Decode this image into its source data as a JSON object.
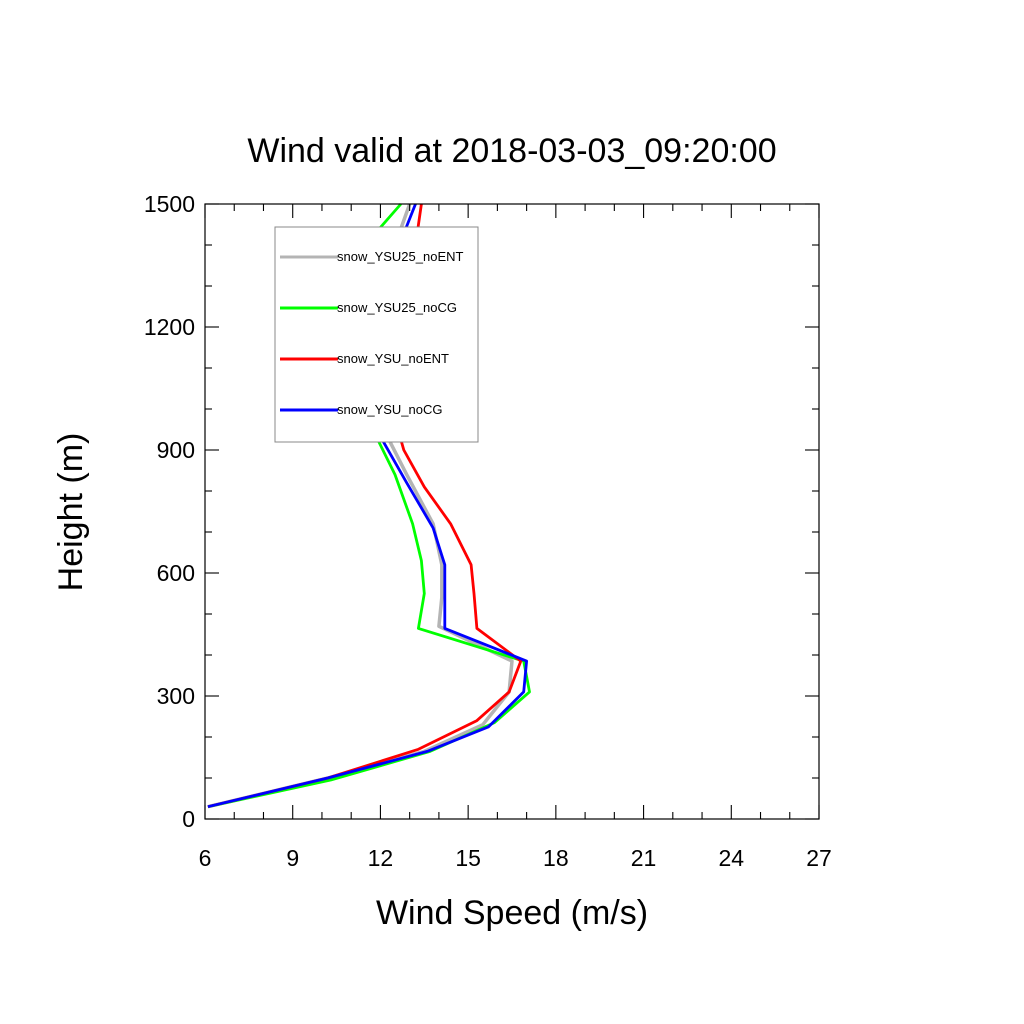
{
  "chart_data": {
    "type": "line",
    "title": "Wind valid at 2018-03-03_09:20:00",
    "xlabel": "Wind Speed (m/s)",
    "ylabel": "Height (m)",
    "xlim": [
      6,
      27
    ],
    "ylim": [
      0,
      1500
    ],
    "xticks": [
      6,
      9,
      12,
      15,
      18,
      21,
      24,
      27
    ],
    "yticks": [
      0,
      300,
      600,
      900,
      1200,
      1500
    ],
    "xtick_labels": [
      "6",
      "9",
      "12",
      "15",
      "18",
      "21",
      "24",
      "27"
    ],
    "ytick_labels": [
      "0",
      "300",
      "600",
      "900",
      "1200",
      "1500"
    ],
    "grid": false,
    "legend_position": "top-left",
    "series": [
      {
        "name": "snow_YSU25_noENT",
        "color": "#b4b4b4",
        "points": [
          [
            6.1,
            30
          ],
          [
            10.2,
            100
          ],
          [
            13.5,
            165
          ],
          [
            15.5,
            230
          ],
          [
            16.4,
            310
          ],
          [
            16.5,
            385
          ],
          [
            14.0,
            470
          ],
          [
            14.1,
            540
          ],
          [
            14.1,
            620
          ],
          [
            13.8,
            720
          ],
          [
            12.9,
            840
          ],
          [
            11.9,
            980
          ],
          [
            11.3,
            1130
          ],
          [
            11.4,
            1200
          ],
          [
            11.7,
            1300
          ],
          [
            12.5,
            1400
          ],
          [
            13.0,
            1500
          ]
        ]
      },
      {
        "name": "snow_YSU25_noCG",
        "color": "#00ff00",
        "points": [
          [
            6.1,
            30
          ],
          [
            10.3,
            95
          ],
          [
            13.7,
            165
          ],
          [
            15.9,
            235
          ],
          [
            17.1,
            310
          ],
          [
            16.9,
            385
          ],
          [
            13.3,
            465
          ],
          [
            13.5,
            550
          ],
          [
            13.4,
            630
          ],
          [
            13.1,
            720
          ],
          [
            12.5,
            840
          ],
          [
            11.6,
            970
          ],
          [
            10.6,
            1100
          ],
          [
            10.1,
            1190
          ],
          [
            10.5,
            1300
          ],
          [
            11.6,
            1410
          ],
          [
            12.7,
            1500
          ]
        ]
      },
      {
        "name": "snow_YSU_noENT",
        "color": "#ff0000",
        "points": [
          [
            6.1,
            30
          ],
          [
            10.2,
            100
          ],
          [
            13.3,
            170
          ],
          [
            15.3,
            240
          ],
          [
            16.4,
            310
          ],
          [
            16.8,
            385
          ],
          [
            15.3,
            465
          ],
          [
            15.2,
            550
          ],
          [
            15.1,
            620
          ],
          [
            14.4,
            720
          ],
          [
            13.5,
            810
          ],
          [
            12.8,
            900
          ],
          [
            12.4,
            1000
          ],
          [
            12.3,
            1100
          ],
          [
            12.5,
            1200
          ],
          [
            13.1,
            1350
          ],
          [
            13.4,
            1500
          ]
        ]
      },
      {
        "name": "snow_YSU_noCG",
        "color": "#0000ff",
        "points": [
          [
            6.1,
            30
          ],
          [
            10.2,
            100
          ],
          [
            13.6,
            165
          ],
          [
            15.7,
            225
          ],
          [
            16.9,
            310
          ],
          [
            17.0,
            385
          ],
          [
            14.2,
            465
          ],
          [
            14.2,
            540
          ],
          [
            14.2,
            620
          ],
          [
            13.8,
            710
          ],
          [
            12.9,
            820
          ],
          [
            12.1,
            920
          ],
          [
            11.2,
            1020
          ],
          [
            10.9,
            1080
          ],
          [
            10.8,
            1180
          ],
          [
            11.1,
            1290
          ],
          [
            11.8,
            1370
          ],
          [
            12.7,
            1410
          ],
          [
            13.2,
            1500
          ]
        ]
      }
    ]
  }
}
